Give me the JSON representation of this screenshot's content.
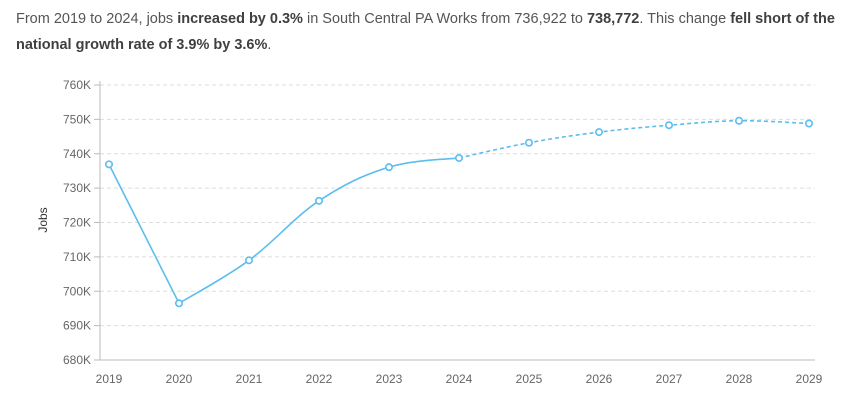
{
  "summary": {
    "part1": "From 2019 to 2024, jobs ",
    "bold1": "increased by 0.3%",
    "part2": " in South Central PA Works from 736,922 to ",
    "bold2": "738,772",
    "part3": ". This change ",
    "bold3": "fell short of the national growth rate of 3.9% by 3.6%",
    "part4": "."
  },
  "chart_data": {
    "type": "line",
    "title": "",
    "xlabel": "",
    "ylabel": "Jobs",
    "categories": [
      "2019",
      "2020",
      "2021",
      "2022",
      "2023",
      "2024",
      "2025",
      "2026",
      "2027",
      "2028",
      "2029"
    ],
    "x": [
      2019,
      2020,
      2021,
      2022,
      2023,
      2024,
      2025,
      2026,
      2027,
      2028,
      2029
    ],
    "series": [
      {
        "values": [
          736922,
          696500,
          709000,
          726300,
          736100,
          738772,
          743200,
          746300,
          748300,
          749600,
          748800
        ],
        "style": "solid through 2024, dashed (projected) 2024-2029"
      }
    ],
    "actual_end_year": 2024,
    "ylim": [
      680000,
      760000
    ],
    "yticks": [
      680000,
      690000,
      700000,
      710000,
      720000,
      730000,
      740000,
      750000,
      760000
    ],
    "ytick_labels": [
      "680K",
      "690K",
      "700K",
      "710K",
      "720K",
      "730K",
      "740K",
      "750K",
      "760K"
    ],
    "grid": true,
    "grid_style": "dashed horizontal",
    "line_color": "#5bbdf0",
    "grid_color": "#dddddd",
    "legend": "none"
  }
}
